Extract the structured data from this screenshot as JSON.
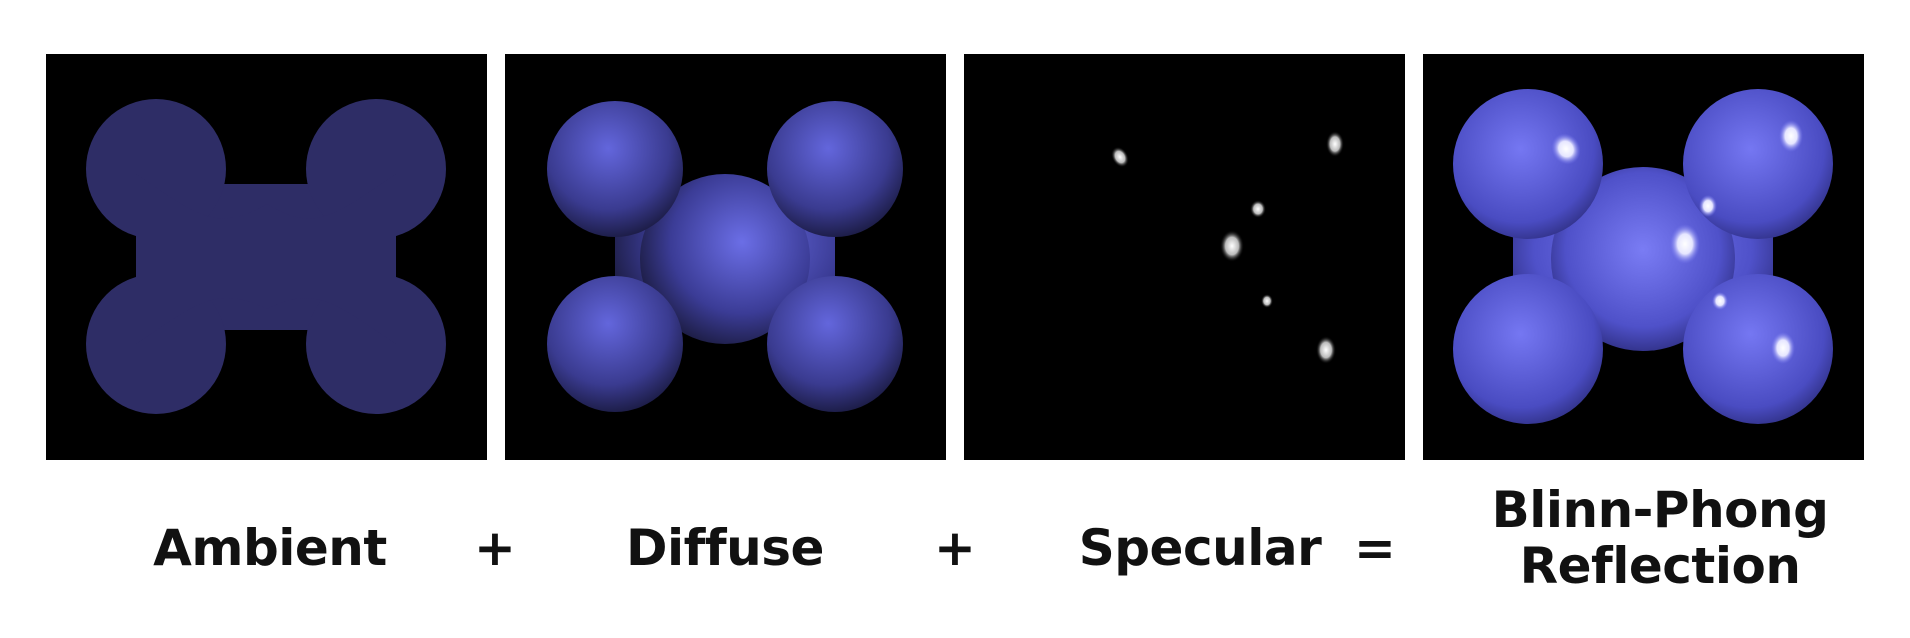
{
  "panels": [
    {
      "id": "ambient",
      "label": "Ambient"
    },
    {
      "id": "diffuse",
      "label": "Diffuse"
    },
    {
      "id": "specular",
      "label": "Specular"
    },
    {
      "id": "result",
      "label_line1": "Blinn-Phong",
      "label_line2": "Reflection"
    }
  ],
  "operators": [
    "+",
    "+",
    "="
  ],
  "colors": {
    "background": "#000000",
    "ambient_fill": "#2e2d66",
    "diffuse_light": "#6b6ee6",
    "diffuse_dark": "#1a1a40",
    "result_light": "#7a7cf4",
    "result_dark": "#2a2a78",
    "highlight": "#ffffff"
  }
}
